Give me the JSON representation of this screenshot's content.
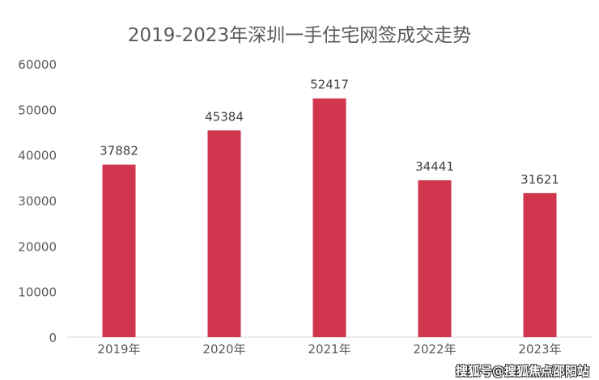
{
  "chart_data": {
    "type": "bar",
    "title": "2019-2023年深圳一手住宅网签成交走势",
    "categories": [
      "2019年",
      "2020年",
      "2021年",
      "2022年",
      "2023年"
    ],
    "values": [
      37882,
      45384,
      52417,
      34441,
      31621
    ],
    "xlabel": "",
    "ylabel": "",
    "ylim": [
      0,
      60000
    ],
    "yticks": [
      0,
      10000,
      20000,
      30000,
      40000,
      50000,
      60000
    ],
    "grid": false,
    "bar_color": "#d1364f",
    "data_labels": true
  },
  "watermark": "搜狐号@搜狐焦点邵阳站"
}
